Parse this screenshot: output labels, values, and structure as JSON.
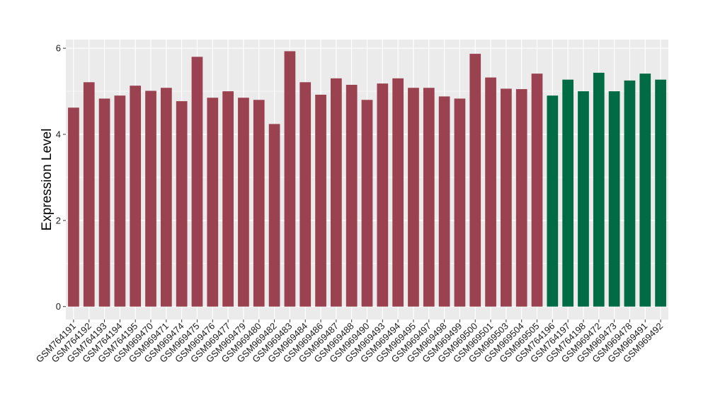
{
  "chart_data": {
    "type": "bar",
    "title": "",
    "xlabel": "",
    "ylabel": "Expression Level",
    "ylim": [
      -0.3,
      6.2
    ],
    "yticks": [
      0,
      2,
      4,
      6
    ],
    "grid": true,
    "legend": "none",
    "colors": {
      "panel_bg": "#ebebeb",
      "grid": "#ffffff",
      "group_a": "#9b4250",
      "group_b": "#006b45"
    },
    "categories": [
      "GSM764191",
      "GSM764192",
      "GSM764193",
      "GSM764194",
      "GSM764195",
      "GSM969470",
      "GSM969471",
      "GSM969474",
      "GSM969475",
      "GSM969476",
      "GSM969477",
      "GSM969479",
      "GSM969480",
      "GSM969482",
      "GSM969483",
      "GSM969484",
      "GSM969486",
      "GSM969487",
      "GSM969488",
      "GSM969490",
      "GSM969493",
      "GSM969494",
      "GSM969495",
      "GSM969497",
      "GSM969498",
      "GSM969499",
      "GSM969500",
      "GSM969501",
      "GSM969503",
      "GSM969504",
      "GSM969505",
      "GSM764196",
      "GSM764197",
      "GSM764198",
      "GSM969472",
      "GSM969473",
      "GSM969478",
      "GSM969491",
      "GSM969492"
    ],
    "values": [
      4.62,
      5.21,
      4.83,
      4.9,
      5.13,
      5.01,
      5.08,
      4.77,
      5.8,
      4.85,
      5.0,
      4.85,
      4.8,
      4.24,
      5.93,
      5.21,
      4.92,
      5.3,
      5.15,
      4.8,
      5.18,
      5.3,
      5.08,
      5.08,
      4.88,
      4.83,
      5.87,
      5.32,
      5.06,
      5.05,
      5.41,
      4.9,
      5.27,
      5.0,
      5.43,
      5.0,
      5.25,
      5.41,
      5.27
    ],
    "groups": [
      "a",
      "a",
      "a",
      "a",
      "a",
      "a",
      "a",
      "a",
      "a",
      "a",
      "a",
      "a",
      "a",
      "a",
      "a",
      "a",
      "a",
      "a",
      "a",
      "a",
      "a",
      "a",
      "a",
      "a",
      "a",
      "a",
      "a",
      "a",
      "a",
      "a",
      "a",
      "b",
      "b",
      "b",
      "b",
      "b",
      "b",
      "b",
      "b"
    ]
  }
}
